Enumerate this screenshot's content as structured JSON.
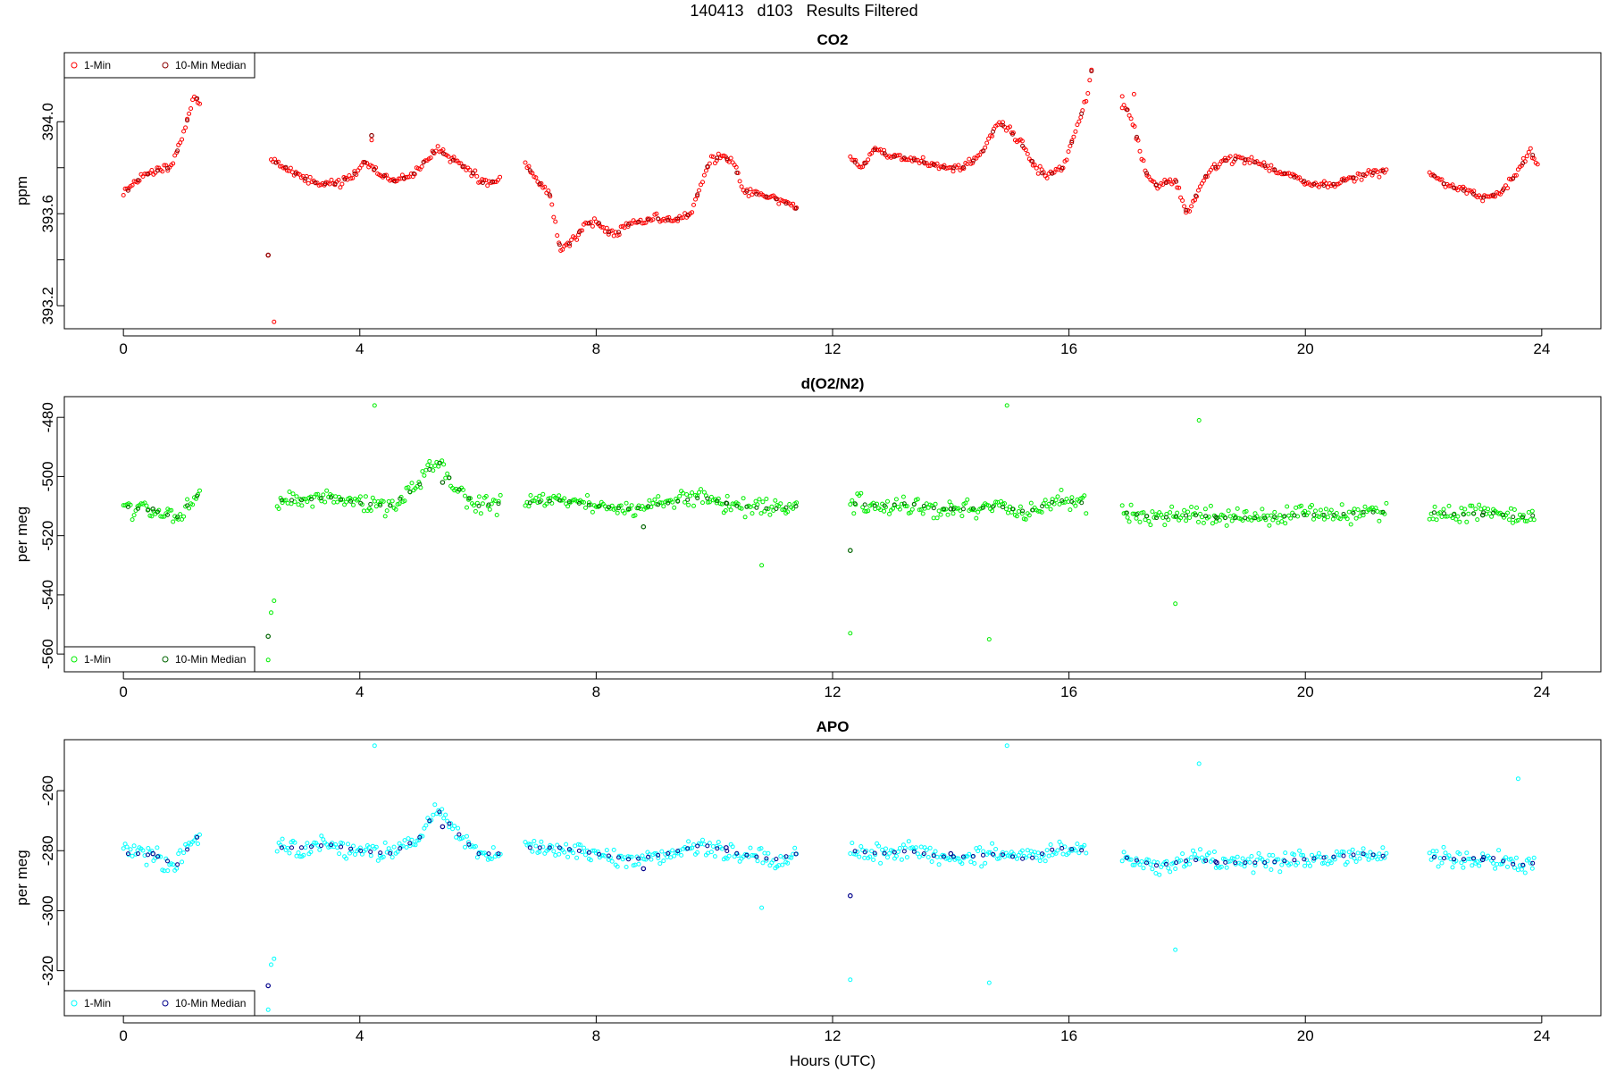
{
  "page": {
    "title": "140413   d103   Results Filtered"
  },
  "figure": {
    "xlabel": "Hours (UTC)",
    "x_range": [
      -1,
      25
    ],
    "x_ticks": [
      0,
      4,
      8,
      12,
      16,
      20,
      24
    ]
  },
  "legend_labels": {
    "one_min": "1-Min",
    "median": "10-Min Median"
  },
  "chart_data": [
    {
      "type": "scatter",
      "id": "co2",
      "title": "CO2",
      "xlabel": "",
      "ylabel": "ppm",
      "ylim": [
        393.1,
        394.3
      ],
      "y_ticks": [
        393.2,
        393.4,
        393.6,
        393.8,
        394.0
      ],
      "y_tick_labels": [
        "393.2",
        "",
        "393.6",
        "",
        "394.0"
      ],
      "legend": "top-left",
      "colors": {
        "one_min": "#ff0000",
        "median": "#8b0000"
      },
      "segments": [
        {
          "x": [
            0.0,
            0.3,
            0.6,
            0.8,
            1.0,
            1.2,
            1.3
          ],
          "y": [
            393.68,
            393.76,
            393.79,
            393.8,
            393.93,
            394.12,
            394.08
          ]
        },
        {
          "x": [
            2.5,
            2.7,
            3.0,
            3.3,
            3.6,
            3.9,
            4.1,
            4.3,
            4.6,
            4.9,
            5.1,
            5.3,
            5.6,
            5.9,
            6.1,
            6.4
          ],
          "y": [
            393.83,
            393.81,
            393.76,
            393.73,
            393.73,
            393.77,
            393.83,
            393.78,
            393.74,
            393.77,
            393.83,
            393.88,
            393.83,
            393.78,
            393.73,
            393.75
          ]
        },
        {
          "x": [
            6.8,
            7.0,
            7.2,
            7.4,
            7.6,
            7.8,
            8.0,
            8.3,
            8.5,
            8.8,
            9.0,
            9.3,
            9.6,
            9.9,
            10.1,
            10.3,
            10.5,
            10.8,
            11.1,
            11.4
          ],
          "y": [
            393.82,
            393.74,
            393.7,
            393.44,
            393.48,
            393.55,
            393.57,
            393.5,
            393.55,
            393.57,
            393.58,
            393.57,
            393.6,
            393.82,
            393.85,
            393.83,
            393.7,
            393.68,
            393.66,
            393.62
          ]
        },
        {
          "x": [
            12.3,
            12.5,
            12.7,
            13.0,
            13.3,
            13.6,
            13.9,
            14.2,
            14.5,
            14.8,
            15.0,
            15.2,
            15.4,
            15.6,
            15.9,
            16.1,
            16.3,
            16.4
          ],
          "y": [
            393.84,
            393.8,
            393.88,
            393.85,
            393.84,
            393.82,
            393.8,
            393.8,
            393.85,
            394.0,
            393.96,
            393.9,
            393.82,
            393.76,
            393.8,
            393.95,
            394.1,
            394.25
          ]
        },
        {
          "x": [
            16.9,
            17.1,
            17.3,
            17.5,
            17.8,
            18.0,
            18.3,
            18.6,
            18.9,
            19.2,
            19.5,
            19.8,
            20.1,
            20.4,
            20.7,
            21.0,
            21.2,
            21.4
          ],
          "y": [
            394.1,
            393.98,
            393.78,
            393.72,
            393.75,
            393.6,
            393.76,
            393.83,
            393.84,
            393.82,
            393.79,
            393.76,
            393.73,
            393.72,
            393.75,
            393.77,
            393.78,
            393.79
          ]
        },
        {
          "x": [
            22.1,
            22.4,
            22.7,
            23.0,
            23.3,
            23.6,
            23.8,
            23.95
          ],
          "y": [
            393.78,
            393.72,
            393.7,
            393.67,
            393.69,
            393.78,
            393.88,
            393.8
          ]
        }
      ],
      "outliers": [
        [
          2.45,
          393.42
        ],
        [
          2.55,
          393.13
        ],
        [
          4.2,
          393.92
        ],
        [
          16.9,
          394.06
        ],
        [
          17.1,
          394.12
        ]
      ],
      "medians": [
        [
          2.45,
          393.42
        ],
        [
          4.2,
          393.94
        ]
      ]
    },
    {
      "type": "scatter",
      "id": "o2n2",
      "title": "d(O2/N2)",
      "xlabel": "",
      "ylabel": "per meg",
      "ylim": [
        -566,
        -473
      ],
      "y_ticks": [
        -560,
        -540,
        -520,
        -500,
        -480
      ],
      "y_tick_labels": [
        "-560",
        "-540",
        "-520",
        "-500",
        "-480"
      ],
      "legend": "bottom-left",
      "colors": {
        "one_min": "#00ee00",
        "median": "#006400"
      },
      "segments": [
        {
          "x": [
            0.0,
            0.3,
            0.6,
            0.9,
            1.2,
            1.3
          ],
          "y": [
            -510,
            -511,
            -512,
            -514,
            -507,
            -506
          ]
        },
        {
          "x": [
            2.6,
            3.0,
            3.5,
            4.0,
            4.5,
            5.0,
            5.3,
            5.6,
            6.0,
            6.4
          ],
          "y": [
            -508,
            -508,
            -507,
            -509,
            -510,
            -503,
            -494,
            -503,
            -510,
            -509
          ]
        },
        {
          "x": [
            6.8,
            7.4,
            8.0,
            8.6,
            9.2,
            9.8,
            10.4,
            11.0,
            11.4
          ],
          "y": [
            -509,
            -508,
            -510,
            -511,
            -509,
            -507,
            -510,
            -511,
            -510
          ]
        },
        {
          "x": [
            12.3,
            12.8,
            13.3,
            13.8,
            14.3,
            14.8,
            15.3,
            15.8,
            16.3
          ],
          "y": [
            -509,
            -510,
            -509,
            -511,
            -511,
            -510,
            -512,
            -508,
            -509
          ]
        },
        {
          "x": [
            16.9,
            17.5,
            18.1,
            18.7,
            19.3,
            19.9,
            20.5,
            21.0,
            21.4
          ],
          "y": [
            -512,
            -514,
            -513,
            -514,
            -514,
            -513,
            -513,
            -512,
            -512
          ]
        },
        {
          "x": [
            22.1,
            22.6,
            23.1,
            23.6,
            23.9
          ],
          "y": [
            -512,
            -513,
            -512,
            -514,
            -513
          ]
        }
      ],
      "outliers": [
        [
          2.45,
          -562
        ],
        [
          2.5,
          -546
        ],
        [
          2.55,
          -542
        ],
        [
          4.25,
          -476
        ],
        [
          14.95,
          -476
        ],
        [
          14.65,
          -555
        ],
        [
          12.3,
          -553
        ],
        [
          17.8,
          -543
        ],
        [
          18.2,
          -481
        ],
        [
          10.8,
          -530
        ]
      ],
      "medians": [
        [
          2.45,
          -554
        ],
        [
          12.3,
          -525
        ],
        [
          0.5,
          -511
        ],
        [
          5.4,
          -502
        ],
        [
          8.8,
          -517
        ],
        [
          10.2,
          -509
        ],
        [
          14.0,
          -511
        ],
        [
          18.5,
          -514
        ],
        [
          23.0,
          -513
        ]
      ]
    },
    {
      "type": "scatter",
      "id": "apo",
      "title": "APO",
      "xlabel": "Hours (UTC)",
      "ylabel": "per meg",
      "ylim": [
        -335,
        -243
      ],
      "y_ticks": [
        -320,
        -300,
        -280,
        -260
      ],
      "y_tick_labels": [
        "-320",
        "-300",
        "-280",
        "-260"
      ],
      "legend": "bottom-left",
      "colors": {
        "one_min": "#00ffff",
        "median": "#00008b"
      },
      "segments": [
        {
          "x": [
            0.0,
            0.3,
            0.6,
            0.9,
            1.2,
            1.3
          ],
          "y": [
            -281,
            -281,
            -282,
            -285,
            -276,
            -275
          ]
        },
        {
          "x": [
            2.6,
            3.0,
            3.5,
            4.0,
            4.5,
            5.0,
            5.3,
            5.6,
            6.0,
            6.4
          ],
          "y": [
            -279,
            -279,
            -278,
            -280,
            -281,
            -276,
            -266,
            -273,
            -281,
            -281
          ]
        },
        {
          "x": [
            6.8,
            7.4,
            8.0,
            8.6,
            9.2,
            9.8,
            10.4,
            11.0,
            11.4
          ],
          "y": [
            -279,
            -279,
            -281,
            -283,
            -281,
            -278,
            -281,
            -283,
            -281
          ]
        },
        {
          "x": [
            12.3,
            12.8,
            13.3,
            13.8,
            14.3,
            14.8,
            15.3,
            15.8,
            16.3
          ],
          "y": [
            -280,
            -281,
            -280,
            -282,
            -282,
            -281,
            -283,
            -279,
            -280
          ]
        },
        {
          "x": [
            16.9,
            17.5,
            18.1,
            18.7,
            19.3,
            19.9,
            20.5,
            21.0,
            21.4
          ],
          "y": [
            -282,
            -285,
            -283,
            -284,
            -284,
            -283,
            -282,
            -281,
            -282
          ]
        },
        {
          "x": [
            22.1,
            22.6,
            23.1,
            23.6,
            23.9
          ],
          "y": [
            -282,
            -283,
            -282,
            -285,
            -284
          ]
        }
      ],
      "outliers": [
        [
          2.45,
          -333
        ],
        [
          2.5,
          -318
        ],
        [
          2.55,
          -316
        ],
        [
          4.25,
          -245
        ],
        [
          14.95,
          -245
        ],
        [
          14.65,
          -324
        ],
        [
          12.3,
          -323
        ],
        [
          17.8,
          -313
        ],
        [
          18.2,
          -251
        ],
        [
          10.8,
          -299
        ],
        [
          23.6,
          -256
        ]
      ],
      "medians": [
        [
          2.45,
          -325
        ],
        [
          12.3,
          -295
        ],
        [
          0.5,
          -281
        ],
        [
          5.4,
          -272
        ],
        [
          8.8,
          -286
        ],
        [
          10.2,
          -279
        ],
        [
          14.0,
          -281
        ],
        [
          18.5,
          -284
        ],
        [
          23.0,
          -283
        ]
      ]
    }
  ]
}
